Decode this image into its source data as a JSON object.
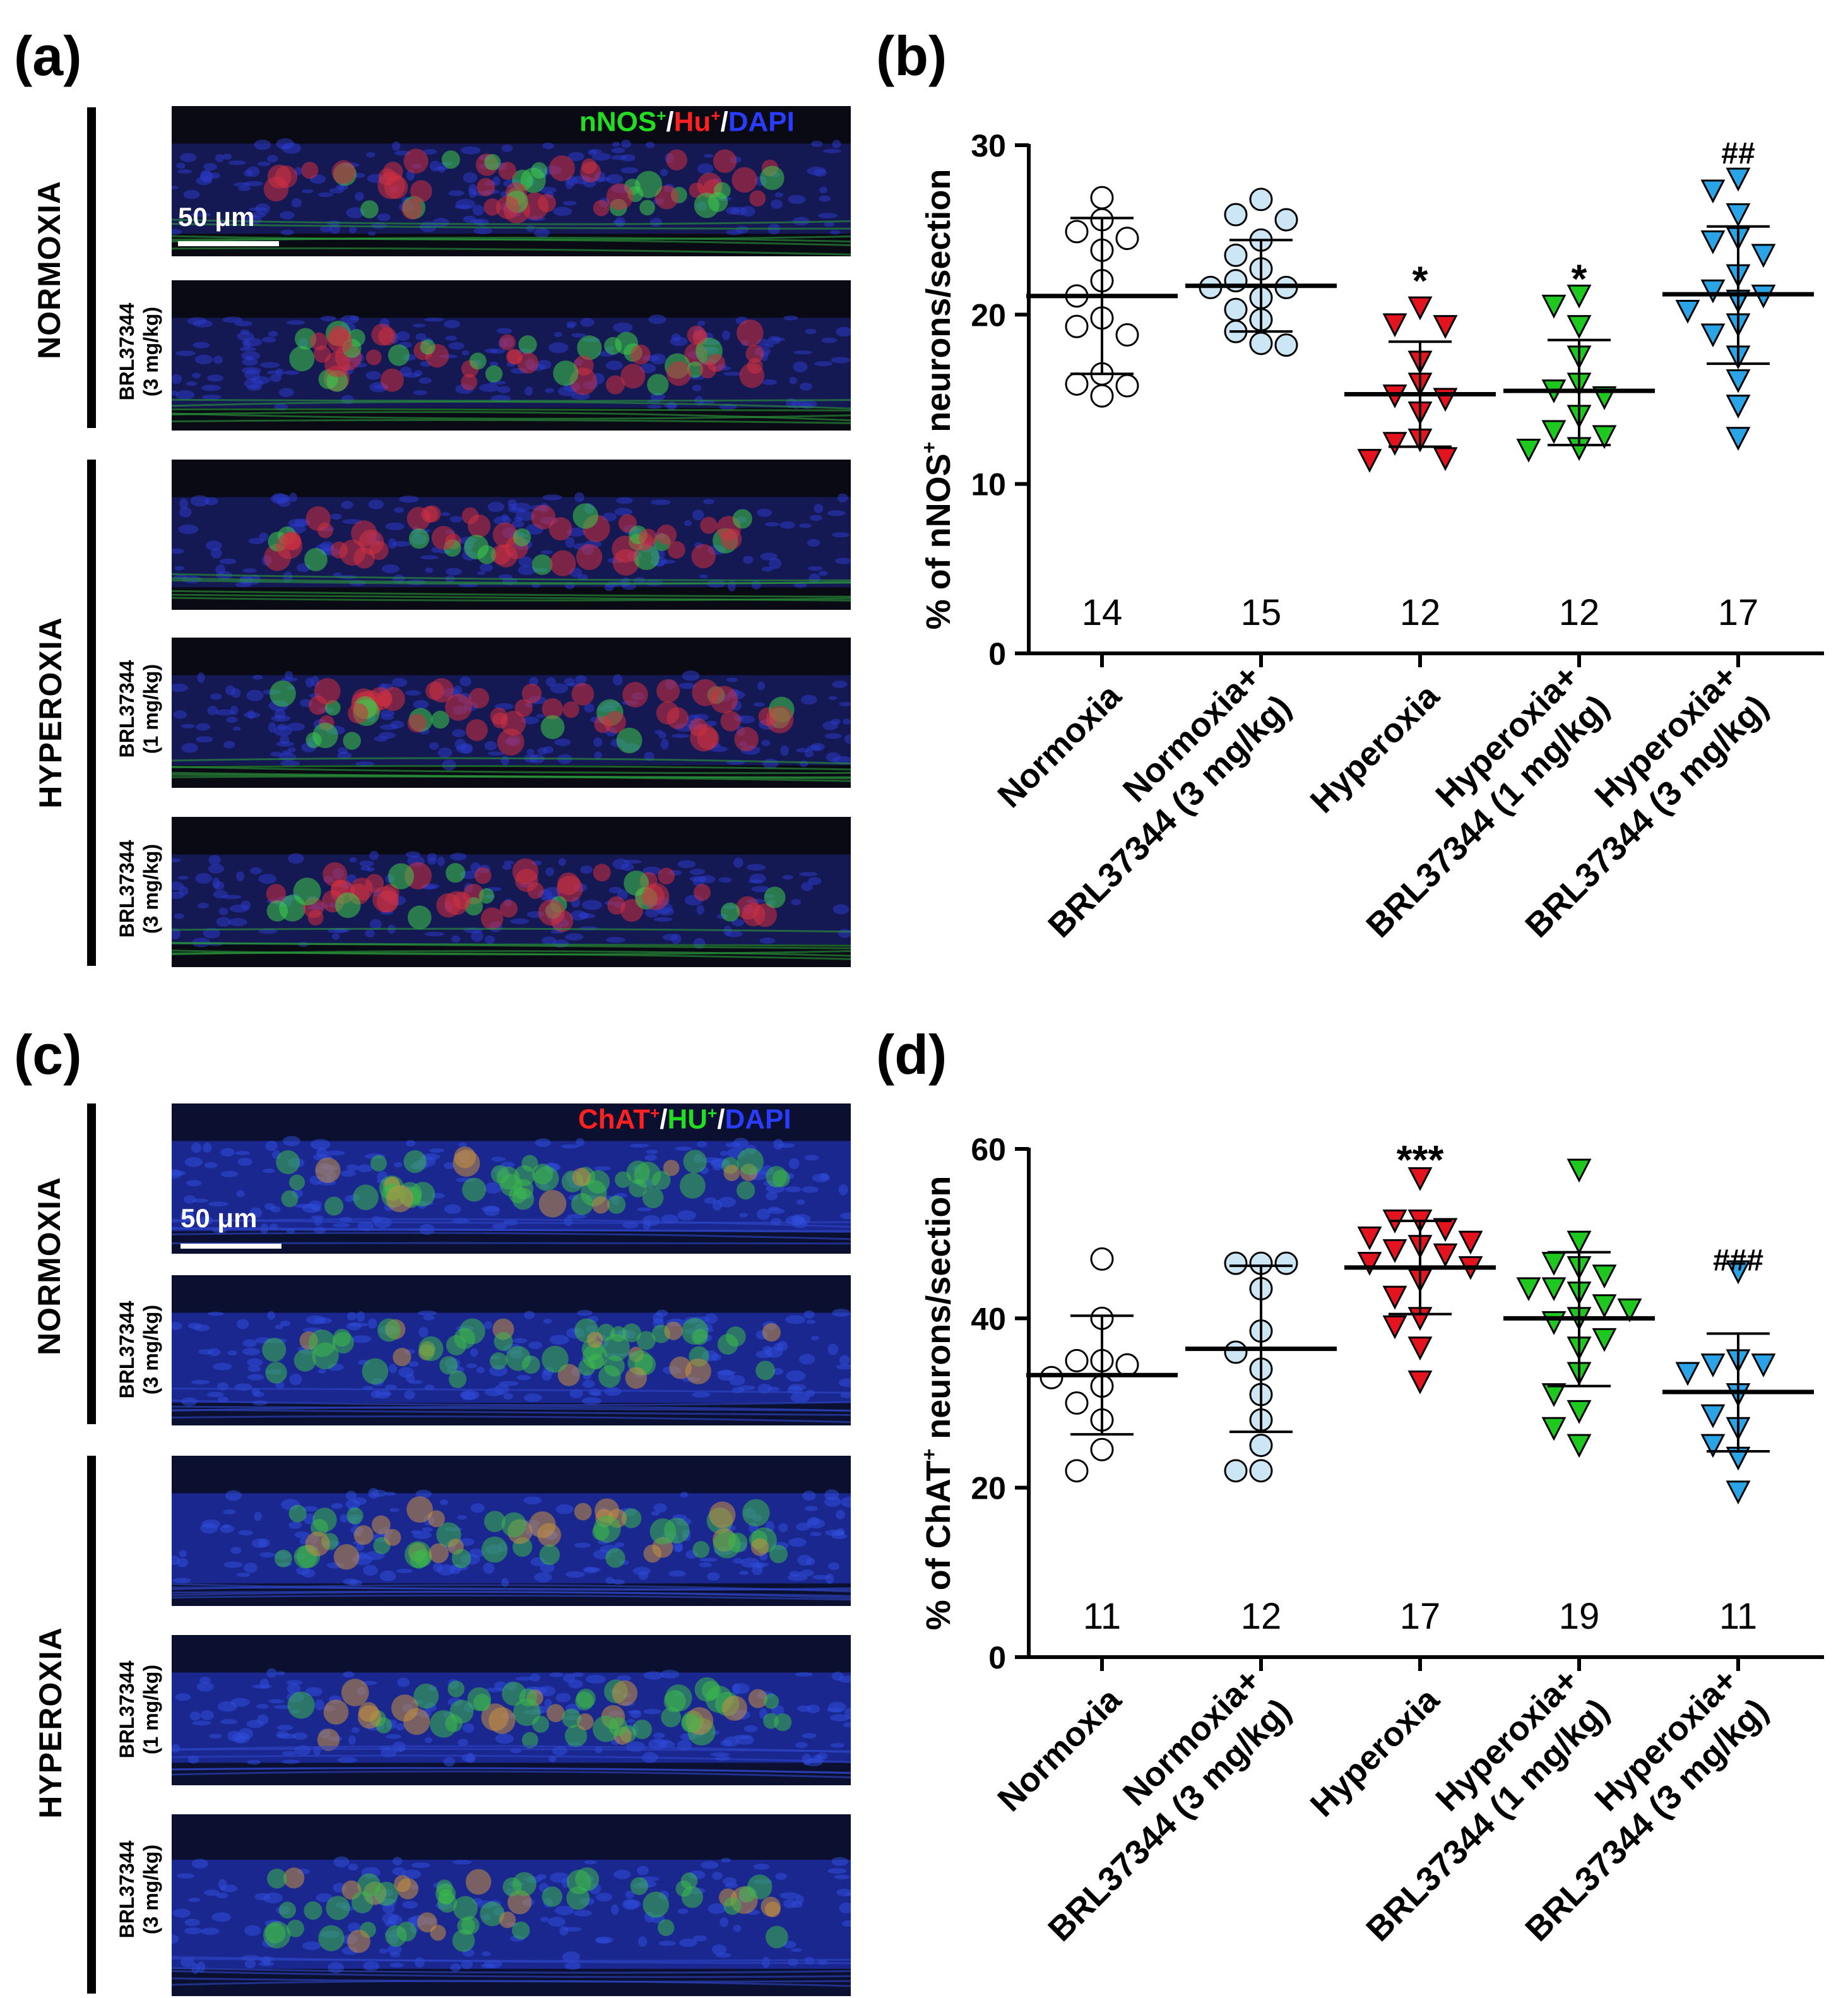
{
  "panels": {
    "a": {
      "letter": "(a)",
      "legend": [
        {
          "text": "nNOS",
          "sup": "+",
          "color": "#22dd22"
        },
        {
          "text": "/",
          "sup": "",
          "color": "#000000"
        },
        {
          "text": "Hu",
          "sup": "+",
          "color": "#ff2020"
        },
        {
          "text": "/",
          "sup": "",
          "color": "#000000"
        },
        {
          "text": "DAPI",
          "sup": "",
          "color": "#2a3cff"
        }
      ],
      "scale": "50 μm",
      "group_normoxia": "NORMOXIA",
      "group_hyperoxia": "HYPEROXIA",
      "row_labels": [
        {
          "drug": "",
          "dose": ""
        },
        {
          "drug": "BRL37344",
          "dose": "(3 mg/kg)"
        },
        {
          "drug": "",
          "dose": ""
        },
        {
          "drug": "BRL37344",
          "dose": "(1 mg/kg)"
        },
        {
          "drug": "BRL37344",
          "dose": "(3 mg/kg)"
        }
      ]
    },
    "b": {
      "letter": "(b)"
    },
    "c": {
      "letter": "(c)",
      "legend": [
        {
          "text": "ChAT",
          "sup": "+",
          "color": "#ff2020"
        },
        {
          "text": "/",
          "sup": "",
          "color": "#000000"
        },
        {
          "text": "HU",
          "sup": "+",
          "color": "#22dd22"
        },
        {
          "text": "/",
          "sup": "",
          "color": "#000000"
        },
        {
          "text": "DAPI",
          "sup": "",
          "color": "#2a3cff"
        }
      ],
      "scale": "50 μm",
      "group_normoxia": "NORMOXIA",
      "group_hyperoxia": "HYPEROXIA",
      "row_labels": [
        {
          "drug": "",
          "dose": ""
        },
        {
          "drug": "BRL37344",
          "dose": "(3 mg/kg)"
        },
        {
          "drug": "",
          "dose": ""
        },
        {
          "drug": "BRL37344",
          "dose": "(1 mg/kg)"
        },
        {
          "drug": "BRL37344",
          "dose": "(3 mg/kg)"
        }
      ]
    },
    "d": {
      "letter": "(d)"
    }
  },
  "chart_data": [
    {
      "id": "b",
      "type": "scatter",
      "ylabel_pre": "% of nNOS",
      "ylabel_sup": "+",
      "ylabel_post": " neurons/section",
      "ylim": [
        0,
        30
      ],
      "yticks": [
        0,
        10,
        20,
        30
      ],
      "categories": [
        {
          "line1": "Normoxia",
          "line2": ""
        },
        {
          "line1": "Normoxia+",
          "line2": "BRL37344 (3 mg/kg)"
        },
        {
          "line1": "Hyperoxia",
          "line2": ""
        },
        {
          "line1": "Hyperoxia+",
          "line2": "BRL37344 (1 mg/kg)"
        },
        {
          "line1": "Hyperoxia+",
          "line2": "BRL37344 (3 mg/kg)"
        }
      ],
      "series": [
        {
          "name": "Normoxia",
          "marker": "circle",
          "color": "#ffffff",
          "n": "14",
          "sig": "",
          "mean": 21.1,
          "sd_lo": 16.5,
          "sd_hi": 25.7,
          "values": [
            26.9,
            25.6,
            24.9,
            24.5,
            23.8,
            22.0,
            21.1,
            19.8,
            19.3,
            18.8,
            16.5,
            15.9,
            15.8,
            15.2
          ]
        },
        {
          "name": "Normoxia+BRL37344 (3 mg/kg)",
          "marker": "circle",
          "color": "#cde6f5",
          "n": "15",
          "sig": "",
          "mean": 21.7,
          "sd_lo": 19.0,
          "sd_hi": 24.4,
          "values": [
            26.8,
            25.9,
            25.6,
            24.4,
            23.5,
            22.7,
            22.0,
            21.6,
            21.6,
            21.0,
            20.3,
            19.7,
            19.0,
            18.3,
            18.2
          ]
        },
        {
          "name": "Hyperoxia",
          "marker": "triangle-down",
          "color": "#e3141e",
          "n": "12",
          "sig": "*",
          "mean": 15.3,
          "sd_lo": 12.2,
          "sd_hi": 18.4,
          "values": [
            20.4,
            19.4,
            19.3,
            17.2,
            15.9,
            15.2,
            15.0,
            14.2,
            12.6,
            12.4,
            11.5,
            11.4
          ]
        },
        {
          "name": "Hyperoxia+BRL37344 (1 mg/kg)",
          "marker": "triangle-down",
          "color": "#1ec81e",
          "n": "12",
          "sig": "*",
          "mean": 15.5,
          "sd_lo": 12.3,
          "sd_hi": 18.5,
          "values": [
            21.1,
            20.5,
            19.3,
            17.5,
            15.9,
            15.5,
            15.1,
            14.0,
            13.1,
            12.8,
            12.1,
            12.0
          ]
        },
        {
          "name": "Hyperoxia+BRL37344 (3 mg/kg)",
          "marker": "triangle-down",
          "color": "#2aa4e6",
          "n": "17",
          "sig": "##",
          "mean": 21.2,
          "sd_lo": 17.1,
          "sd_hi": 25.2,
          "values": [
            28.0,
            27.3,
            25.9,
            24.5,
            24.3,
            23.5,
            22.3,
            21.4,
            21.1,
            20.8,
            20.2,
            19.4,
            18.8,
            17.5,
            16.1,
            14.6,
            12.7
          ]
        }
      ]
    },
    {
      "id": "d",
      "type": "scatter",
      "ylabel_pre": "% of ChAT",
      "ylabel_sup": "+",
      "ylabel_post": " neurons/section",
      "ylim": [
        0,
        60
      ],
      "yticks": [
        0,
        20,
        40,
        60
      ],
      "categories": [
        {
          "line1": "Normoxia",
          "line2": ""
        },
        {
          "line1": "Normoxia+",
          "line2": "BRL37344 (3 mg/kg)"
        },
        {
          "line1": "Hyperoxia",
          "line2": ""
        },
        {
          "line1": "Hyperoxia+",
          "line2": "BRL37344 (1 mg/kg)"
        },
        {
          "line1": "Hyperoxia+",
          "line2": "BRL37344 (3 mg/kg)"
        }
      ],
      "series": [
        {
          "name": "Normoxia",
          "marker": "circle",
          "color": "#ffffff",
          "n": "11",
          "sig": "",
          "mean": 33.3,
          "sd_lo": 26.3,
          "sd_hi": 40.3,
          "values": [
            47.0,
            40.0,
            35.0,
            35.0,
            34.5,
            33.0,
            32.0,
            30.0,
            28.0,
            24.5,
            22.0
          ]
        },
        {
          "name": "Normoxia+BRL37344 (3 mg/kg)",
          "marker": "circle",
          "color": "#cde6f5",
          "n": "12",
          "sig": "",
          "mean": 36.4,
          "sd_lo": 26.6,
          "sd_hi": 46.2,
          "values": [
            46.5,
            46.5,
            46.5,
            43.5,
            38.5,
            36.0,
            34.0,
            31.0,
            28.0,
            25.0,
            22.0,
            22.0
          ]
        },
        {
          "name": "Hyperoxia",
          "marker": "triangle-down",
          "color": "#e3141e",
          "n": "17",
          "sig": "***",
          "mean": 46.0,
          "sd_lo": 40.5,
          "sd_hi": 51.5,
          "values": [
            56.5,
            51.5,
            51.5,
            50.5,
            49.5,
            49.0,
            48.5,
            48.0,
            47.5,
            46.5,
            46.0,
            44.5,
            42.5,
            40.0,
            39.0,
            36.5,
            32.5
          ]
        },
        {
          "name": "Hyperoxia+BRL37344 (1 mg/kg)",
          "marker": "triangle-down",
          "color": "#1ec81e",
          "n": "19",
          "sig": "",
          "mean": 40.0,
          "sd_lo": 32.0,
          "sd_hi": 47.8,
          "values": [
            57.5,
            49.0,
            46.5,
            46.0,
            45.0,
            43.5,
            43.5,
            43.0,
            41.5,
            41.0,
            40.0,
            39.5,
            37.5,
            36.5,
            33.5,
            31.0,
            29.0,
            27.0,
            25.0
          ]
        },
        {
          "name": "Hyperoxia+BRL37344 (3 mg/kg)",
          "marker": "triangle-down",
          "color": "#2aa4e6",
          "n": "11",
          "sig": "###",
          "mean": 31.3,
          "sd_lo": 24.3,
          "sd_hi": 38.2,
          "values": [
            45.5,
            35.0,
            34.5,
            34.5,
            33.5,
            31.0,
            28.5,
            27.0,
            25.0,
            23.5,
            19.5
          ]
        }
      ]
    }
  ]
}
